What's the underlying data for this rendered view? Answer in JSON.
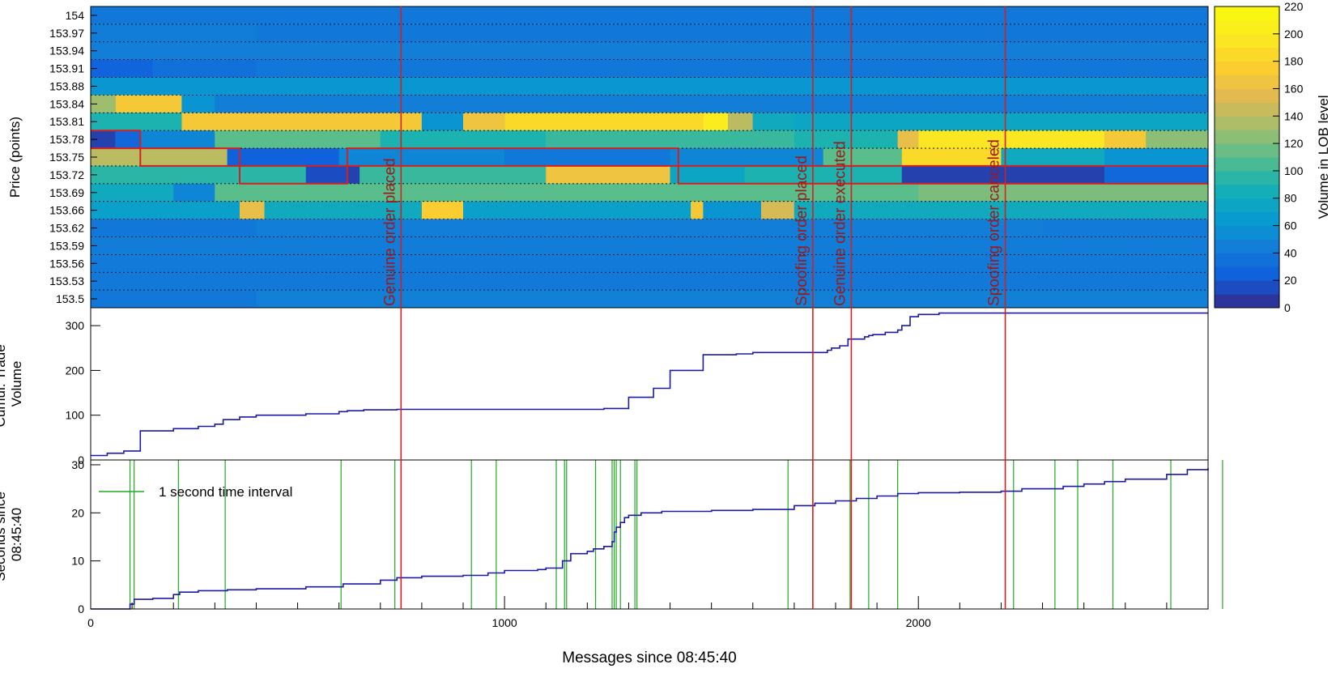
{
  "chart_data": [
    {
      "type": "heatmap",
      "ylabel": "Price (points)",
      "price_levels": [
        "154",
        "153.97",
        "153.94",
        "153.91",
        "153.88",
        "153.84",
        "153.81",
        "153.78",
        "153.75",
        "153.72",
        "153.69",
        "153.66",
        "153.62",
        "153.59",
        "153.56",
        "153.53",
        "153.5"
      ],
      "xlim": [
        0,
        2700
      ],
      "colorbar": {
        "label": "Volume in LOB level",
        "min": 0,
        "max": 220,
        "ticks": [
          0,
          20,
          40,
          60,
          80,
          100,
          120,
          140,
          160,
          180,
          200,
          220
        ]
      },
      "rows": [
        {
          "level": "154",
          "base": 40,
          "segments": []
        },
        {
          "level": "153.97",
          "base": 42,
          "segments": [
            [
              0,
              400,
              44
            ],
            [
              400,
              2700,
              40
            ]
          ]
        },
        {
          "level": "153.94",
          "base": 44,
          "segments": [
            [
              0,
              2700,
              45
            ]
          ]
        },
        {
          "level": "153.91",
          "base": 38,
          "segments": [
            [
              0,
              150,
              28
            ],
            [
              150,
              400,
              35
            ],
            [
              400,
              2700,
              40
            ]
          ]
        },
        {
          "level": "153.88",
          "base": 55,
          "segments": [
            [
              0,
              2700,
              62
            ]
          ]
        },
        {
          "level": "153.84",
          "base": 40,
          "segments": [
            [
              0,
              60,
              130
            ],
            [
              60,
              220,
              170
            ],
            [
              220,
              300,
              60
            ],
            [
              300,
              2700,
              45
            ]
          ]
        },
        {
          "level": "153.81",
          "base": 80,
          "segments": [
            [
              0,
              220,
              90
            ],
            [
              220,
              800,
              170
            ],
            [
              800,
              900,
              60
            ],
            [
              900,
              1000,
              165
            ],
            [
              1000,
              1480,
              185
            ],
            [
              1480,
              1540,
              200
            ],
            [
              1540,
              1600,
              140
            ],
            [
              1600,
              1700,
              80
            ],
            [
              1700,
              2700,
              75
            ]
          ]
        },
        {
          "level": "153.78",
          "base": 100,
          "segments": [
            [
              0,
              60,
              10
            ],
            [
              60,
              120,
              30
            ],
            [
              120,
              300,
              50
            ],
            [
              300,
              700,
              110
            ],
            [
              700,
              1100,
              90
            ],
            [
              1100,
              1700,
              100
            ],
            [
              1700,
              1950,
              90
            ],
            [
              1950,
              2000,
              160
            ],
            [
              2000,
              2450,
              195
            ],
            [
              2450,
              2550,
              170
            ],
            [
              2550,
              2700,
              125
            ]
          ]
        },
        {
          "level": "153.75",
          "base": 60,
          "segments": [
            [
              0,
              330,
              140
            ],
            [
              330,
              600,
              25
            ],
            [
              600,
              1000,
              50
            ],
            [
              1000,
              1400,
              40
            ],
            [
              1400,
              1770,
              50
            ],
            [
              1770,
              1960,
              110
            ],
            [
              1960,
              2200,
              185
            ],
            [
              2200,
              2450,
              80
            ],
            [
              2450,
              2700,
              60
            ]
          ]
        },
        {
          "level": "153.72",
          "base": 80,
          "segments": [
            [
              0,
              520,
              95
            ],
            [
              520,
              620,
              15
            ],
            [
              620,
              650,
              10
            ],
            [
              650,
              1100,
              100
            ],
            [
              1100,
              1400,
              165
            ],
            [
              1400,
              1580,
              75
            ],
            [
              1580,
              1960,
              90
            ],
            [
              1960,
              2450,
              10
            ],
            [
              2450,
              2700,
              30
            ]
          ]
        },
        {
          "level": "153.69",
          "base": 90,
          "segments": [
            [
              0,
              200,
              80
            ],
            [
              200,
              300,
              50
            ],
            [
              300,
              2000,
              110
            ],
            [
              2000,
              2700,
              120
            ]
          ]
        },
        {
          "level": "153.66",
          "base": 70,
          "segments": [
            [
              0,
              360,
              70
            ],
            [
              360,
              420,
              160
            ],
            [
              420,
              800,
              80
            ],
            [
              800,
              900,
              175
            ],
            [
              900,
              1450,
              70
            ],
            [
              1450,
              1480,
              170
            ],
            [
              1480,
              1620,
              60
            ],
            [
              1620,
              1700,
              150
            ],
            [
              1700,
              2700,
              80
            ]
          ]
        },
        {
          "level": "153.62",
          "base": 45,
          "segments": [
            [
              0,
              400,
              40
            ],
            [
              400,
              2300,
              45
            ],
            [
              2300,
              2700,
              42
            ]
          ]
        },
        {
          "level": "153.59",
          "base": 42,
          "segments": [
            [
              0,
              2700,
              44
            ]
          ]
        },
        {
          "level": "153.56",
          "base": 40,
          "segments": [
            [
              0,
              2700,
              42
            ]
          ]
        },
        {
          "level": "153.53",
          "base": 40,
          "segments": [
            [
              0,
              2700,
              41
            ]
          ]
        },
        {
          "level": "153.5",
          "base": 45,
          "segments": [
            [
              0,
              400,
              40
            ],
            [
              400,
              2700,
              46
            ]
          ]
        }
      ],
      "order_path": [
        [
          0,
          "153.78"
        ],
        [
          120,
          "153.78"
        ],
        [
          120,
          "153.75"
        ],
        [
          360,
          "153.75"
        ],
        [
          360,
          "153.72"
        ],
        [
          620,
          "153.72"
        ],
        [
          620,
          "153.75"
        ],
        [
          1420,
          "153.75"
        ],
        [
          1420,
          "153.72"
        ],
        [
          2700,
          "153.72"
        ]
      ]
    },
    {
      "type": "line",
      "ylabel": "Cumul. Trade Volume",
      "ylim": [
        0,
        340
      ],
      "yticks": [
        0,
        100,
        200,
        300
      ],
      "series": [
        {
          "color": "#1a1aa6",
          "x": [
            0,
            40,
            80,
            120,
            200,
            260,
            300,
            320,
            360,
            400,
            520,
            600,
            620,
            660,
            740,
            800,
            1000,
            1200,
            1240,
            1300,
            1360,
            1400,
            1480,
            1560,
            1600,
            1720,
            1760,
            1780,
            1790,
            1810,
            1830,
            1870,
            1880,
            1890,
            1920,
            1950,
            1960,
            1980,
            2000,
            2050,
            2200,
            2700
          ],
          "y": [
            10,
            15,
            20,
            65,
            70,
            75,
            80,
            90,
            96,
            100,
            103,
            108,
            110,
            112,
            113,
            113,
            113,
            113,
            115,
            140,
            160,
            200,
            235,
            237,
            240,
            240,
            240,
            245,
            250,
            255,
            270,
            275,
            278,
            280,
            285,
            290,
            300,
            320,
            325,
            328,
            328,
            328
          ]
        }
      ]
    },
    {
      "type": "line",
      "ylabel": "Seconds since 08:45:40",
      "xlabel": "Messages since 08:45:40",
      "ylim": [
        0,
        31
      ],
      "yticks": [
        0,
        10,
        20,
        30
      ],
      "xticks": [
        0,
        1000,
        2000
      ],
      "legend": {
        "label": "1 second time interval",
        "color": "#22aa22",
        "placement": "top-left"
      },
      "interval_lines": [
        95,
        105,
        212,
        325,
        605,
        735,
        920,
        980,
        1125,
        1145,
        1150,
        1220,
        1260,
        1265,
        1270,
        1280,
        1315,
        1320,
        1685,
        1745,
        1835,
        1880,
        1950,
        2230,
        2330,
        2385,
        2470,
        2610,
        2735
      ],
      "series": [
        {
          "color": "#1a1aa6",
          "x": [
            0,
            80,
            95,
            105,
            150,
            200,
            215,
            260,
            330,
            400,
            520,
            610,
            700,
            740,
            800,
            900,
            960,
            1000,
            1080,
            1100,
            1140,
            1160,
            1200,
            1215,
            1240,
            1260,
            1265,
            1270,
            1280,
            1290,
            1300,
            1330,
            1380,
            1500,
            1600,
            1700,
            1750,
            1800,
            1850,
            1900,
            1950,
            2000,
            2100,
            2200,
            2250,
            2350,
            2400,
            2450,
            2500,
            2600,
            2650,
            2700
          ],
          "y": [
            0,
            0,
            1,
            2,
            2.2,
            3,
            3.5,
            3.8,
            4,
            4.2,
            4.6,
            5.2,
            6,
            6.5,
            6.8,
            7,
            7.5,
            8,
            8.2,
            8.5,
            10,
            11.5,
            12,
            12.5,
            13,
            14,
            16,
            17,
            18,
            19,
            19.5,
            20,
            20.3,
            20.5,
            20.7,
            21.5,
            22,
            22.5,
            23,
            23.5,
            24,
            24.2,
            24.3,
            24.5,
            25,
            25.5,
            26,
            26.5,
            27,
            28,
            29,
            29.3
          ]
        }
      ]
    }
  ],
  "annotations": [
    {
      "x": 750,
      "label": "Genuine order placed"
    },
    {
      "x": 1745,
      "label": "Spoofing order placed"
    },
    {
      "x": 1838,
      "label": "Genuine order executed"
    },
    {
      "x": 2210,
      "label": "Spoofing order canceled"
    }
  ],
  "colors": {
    "annotation": "#d42020",
    "trade_line": "#1a1aa6",
    "interval": "#22aa22",
    "order_outline": "#d42020"
  }
}
